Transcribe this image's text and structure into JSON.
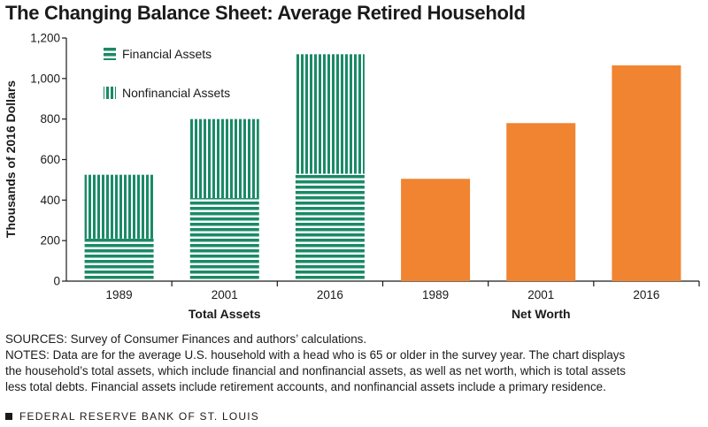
{
  "title": "The Changing Balance Sheet: Average Retired Household",
  "colors": {
    "assets": "#1a8a66",
    "net_worth": "#f08431",
    "axis": "#1a1a1a",
    "text": "#1a1a1a"
  },
  "chart_data": {
    "type": "bar",
    "ylabel": "Thousands of 2016 Dollars",
    "ylim": [
      0,
      1200
    ],
    "yticks": [
      "0",
      "200",
      "400",
      "600",
      "800",
      "1,000",
      "1,200"
    ],
    "yticks_values": [
      0,
      200,
      400,
      600,
      800,
      1000,
      1200
    ],
    "grid": false,
    "legend": "top-left",
    "groups": [
      {
        "label": "Total Assets",
        "type": "stacked-bar",
        "categories": [
          "1989",
          "2001",
          "2016"
        ],
        "series": [
          {
            "name": "Financial Assets",
            "pattern": "horizontal-stripes",
            "values": [
              210,
              410,
              530
            ]
          },
          {
            "name": "Nonfinancial Assets",
            "pattern": "vertical-stripes",
            "values": [
              315,
              390,
              590
            ]
          }
        ]
      },
      {
        "label": "Net Worth",
        "type": "bar",
        "categories": [
          "1989",
          "2001",
          "2016"
        ],
        "values": [
          505,
          780,
          1065
        ]
      }
    ]
  },
  "sources": "SOURCES: Survey of Consumer Finances and authors’ calculations.",
  "notes_lines": [
    "NOTES: Data are for the average U.S. household with a head who is 65 or older in the survey year. The chart displays",
    "the household’s total assets, which include financial and nonfinancial assets, as well as net worth, which is total assets",
    "less total debts. Financial assets include retirement accounts, and nonfinancial assets include a primary residence."
  ],
  "footer": "FEDERAL RESERVE BANK OF ST. LOUIS"
}
